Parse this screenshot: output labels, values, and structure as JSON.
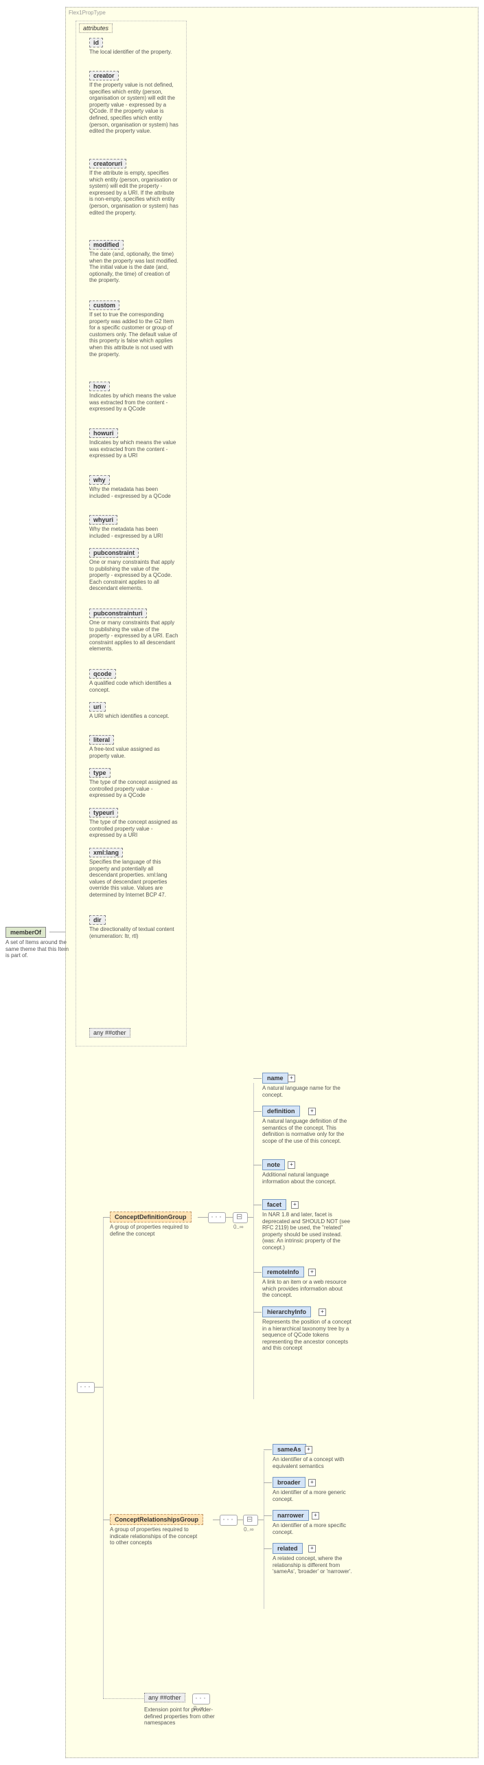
{
  "root": {
    "type_name": "Flex1PropType",
    "element": "memberOf",
    "element_desc": "A set of Items around the same theme that this Item is part of.",
    "attributes_label": "attributes",
    "any_other": "any ##other"
  },
  "attrs": [
    {
      "name": "id",
      "desc": "The local identifier of the property."
    },
    {
      "name": "creator",
      "desc": "If the property value is not defined, specifies which entity (person, organisation or system) will edit the property value - expressed by a QCode. If the property value is defined, specifies which entity (person, organisation or system) has edited the property value."
    },
    {
      "name": "creatoruri",
      "desc": "If the attribute is empty, specifies which entity (person, organisation or system) will edit the property - expressed by a URI. If the attribute is non-empty, specifies which entity (person, organisation or system) has edited the property."
    },
    {
      "name": "modified",
      "desc": "The date (and, optionally, the time) when the property was last modified. The initial value is the date (and, optionally, the time) of creation of the property."
    },
    {
      "name": "custom",
      "desc": "If set to true the corresponding property was added to the G2 Item for a specific customer or group of customers only. The default value of this property is false which applies when this attribute is not used with the property."
    },
    {
      "name": "how",
      "desc": "Indicates by which means the value was extracted from the content - expressed by a QCode"
    },
    {
      "name": "howuri",
      "desc": "Indicates by which means the value was extracted from the content - expressed by a URI"
    },
    {
      "name": "why",
      "desc": "Why the metadata has been included - expressed by a QCode"
    },
    {
      "name": "whyuri",
      "desc": "Why the metadata has been included - expressed by a URI"
    },
    {
      "name": "pubconstraint",
      "desc": "One or many constraints that apply to publishing the value of the property - expressed by a QCode. Each constraint applies to all descendant elements."
    },
    {
      "name": "pubconstrainturi",
      "desc": "One or many constraints that apply to publishing the value of the property - expressed by a URI. Each constraint applies to all descendant elements."
    },
    {
      "name": "qcode",
      "desc": "A qualified code which identifies a concept."
    },
    {
      "name": "uri",
      "desc": "A URI which identifies a concept."
    },
    {
      "name": "literal",
      "desc": "A free-text value assigned as property value."
    },
    {
      "name": "type",
      "desc": "The type of the concept assigned as controlled property value - expressed by a QCode"
    },
    {
      "name": "typeuri",
      "desc": "The type of the concept assigned as controlled property value - expressed by a URI"
    },
    {
      "name": "xml:lang",
      "desc": "Specifies the language of this property and potentially all descendant properties. xml:lang values of descendant properties override this value. Values are determined by Internet BCP 47."
    },
    {
      "name": "dir",
      "desc": "The directionality of textual content (enumeration: ltr, rtl)"
    }
  ],
  "groups": {
    "def": {
      "name": "ConceptDefinitionGroup",
      "desc": "A group of properties required to define the concept"
    },
    "rel": {
      "name": "ConceptRelationshipsGroup",
      "desc": "A group of properties required to indicate relationships of the concept to other concepts"
    },
    "ext": {
      "name": "any ##other",
      "desc": "Extension point for provider-defined properties from other namespaces"
    }
  },
  "def_elems": [
    {
      "name": "name",
      "desc": "A natural language name for the concept."
    },
    {
      "name": "definition",
      "desc": "A natural language definition of the semantics of the concept. This definition is normative only for the scope of the use of this concept."
    },
    {
      "name": "note",
      "desc": "Additional natural language information about the concept."
    },
    {
      "name": "facet",
      "desc": "In NAR 1.8 and later, facet is deprecated and SHOULD NOT (see RFC 2119) be used, the \"related\" property should be used instead.(was: An intrinsic property of the concept.)"
    },
    {
      "name": "remoteInfo",
      "desc": "A link to an item or a web resource which provides information about the concept."
    },
    {
      "name": "hierarchyInfo",
      "desc": "Represents the position of a concept in a hierarchical taxonomy tree by a sequence of QCode tokens representing the ancestor concepts and this concept"
    }
  ],
  "rel_elems": [
    {
      "name": "sameAs",
      "desc": "An identifier of a concept with equivalent semantics"
    },
    {
      "name": "broader",
      "desc": "An identifier of a more generic concept."
    },
    {
      "name": "narrower",
      "desc": "An identifier of a more specific concept."
    },
    {
      "name": "related",
      "desc": "A related concept, where the relationship is different from 'sameAs', 'broader' or 'narrower'."
    }
  ],
  "occur": "0..∞"
}
